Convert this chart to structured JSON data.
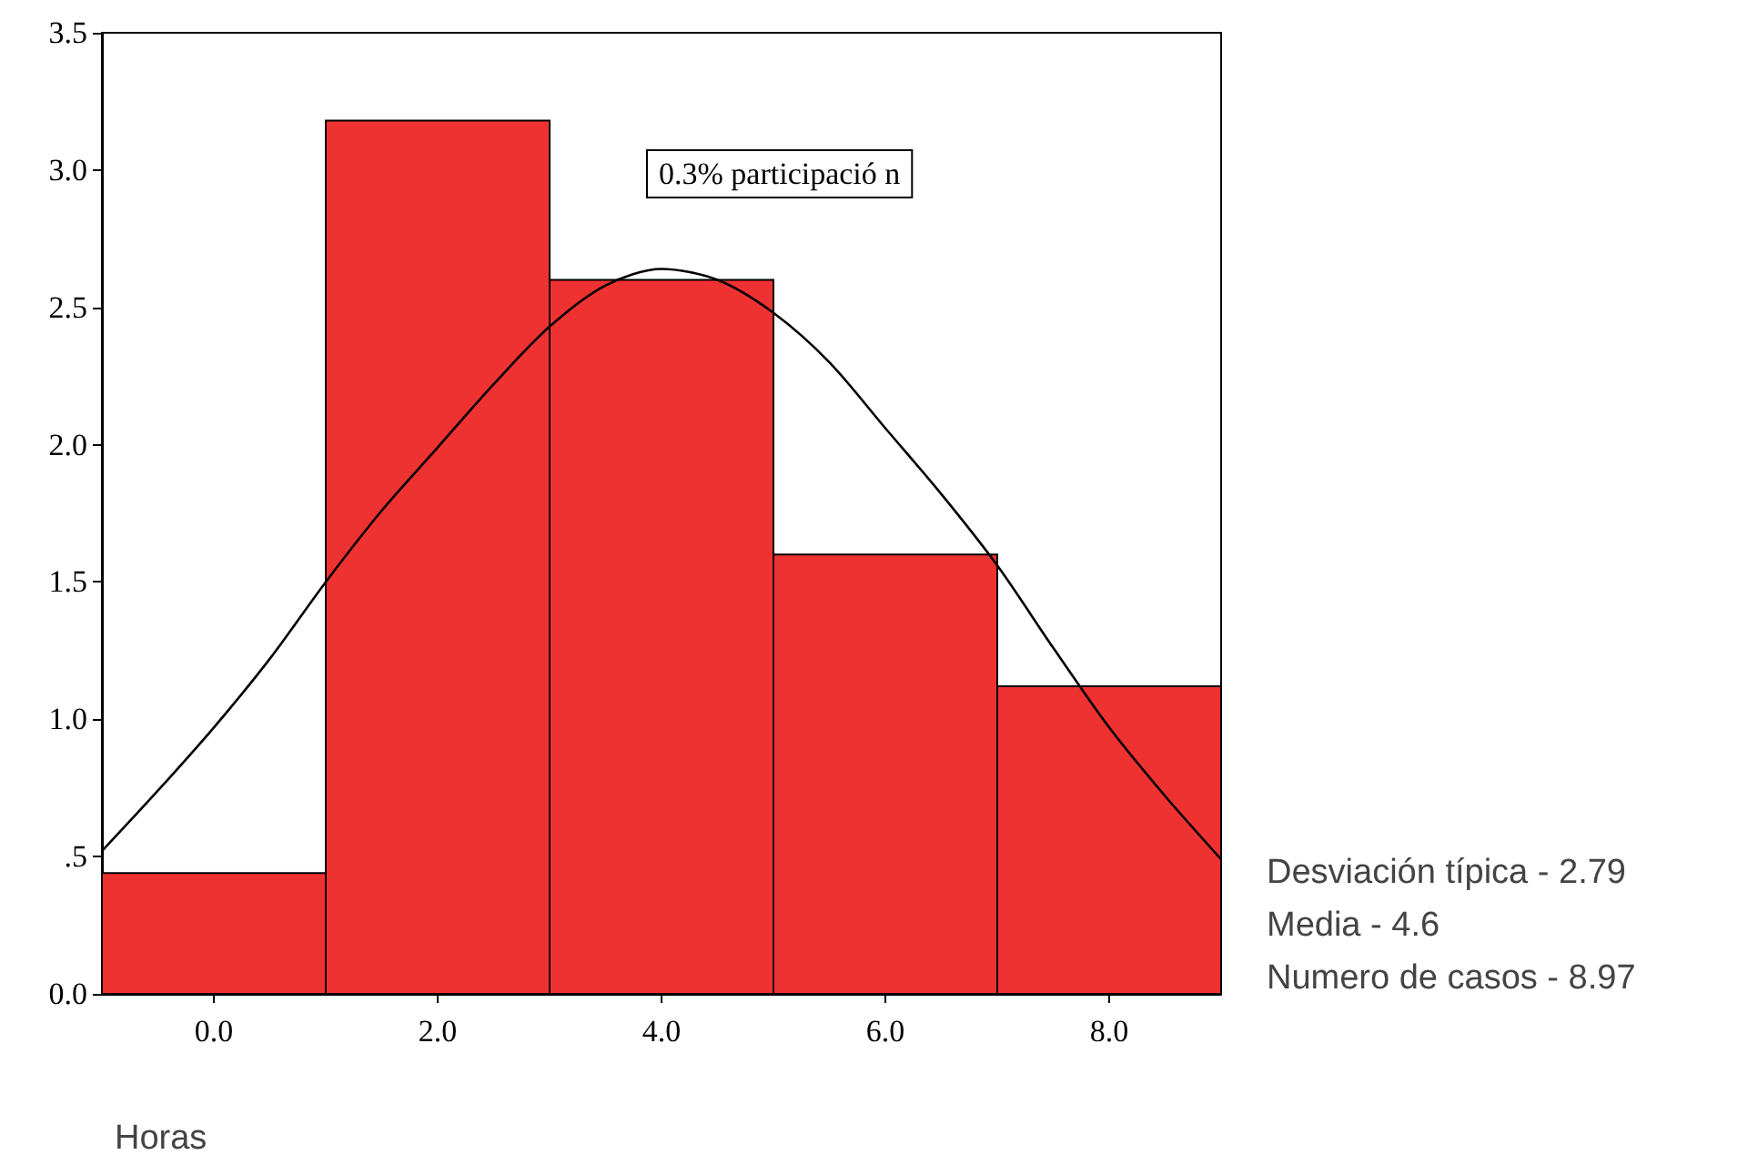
{
  "chart_data": {
    "type": "histogram",
    "xlabel": "Horas",
    "bins": [
      -1,
      1,
      3,
      5,
      7,
      9
    ],
    "xlim": [
      -1,
      9
    ],
    "ylim": [
      0,
      3.5
    ],
    "xticks": [
      {
        "value": 0,
        "label": "0.0"
      },
      {
        "value": 2,
        "label": "2.0"
      },
      {
        "value": 4,
        "label": "4.0"
      },
      {
        "value": 6,
        "label": "6.0"
      },
      {
        "value": 8,
        "label": "8.0"
      }
    ],
    "yticks": [
      {
        "value": 0,
        "label": "0.0"
      },
      {
        "value": 0.5,
        "label": ".5"
      },
      {
        "value": 1,
        "label": "1.0"
      },
      {
        "value": 1.5,
        "label": "1.5"
      },
      {
        "value": 2,
        "label": "2.0"
      },
      {
        "value": 2.5,
        "label": "2.5"
      },
      {
        "value": 3,
        "label": "3.0"
      },
      {
        "value": 3.5,
        "label": "3.5"
      }
    ],
    "grid": false,
    "marker": "none",
    "series": [
      {
        "color": "#ee3231",
        "values": [
          0.44,
          3.18,
          2.6,
          1.6,
          1.12
        ]
      },
      {
        "type": "line",
        "color": "#000000",
        "x": [
          -1,
          -0.5,
          0,
          0.5,
          1,
          1.5,
          2,
          2.5,
          3,
          3.5,
          4,
          4.5,
          5,
          5.5,
          6,
          6.5,
          7,
          7.5,
          8,
          8.5,
          9
        ],
        "values": [
          0.52,
          0.74,
          0.97,
          1.22,
          1.5,
          1.76,
          1.99,
          2.22,
          2.43,
          2.58,
          2.64,
          2.6,
          2.48,
          2.3,
          2.06,
          1.82,
          1.56,
          1.26,
          0.97,
          0.72,
          0.49
        ]
      }
    ],
    "annotations": [
      "0.3% participació n",
      "Desviación típica - 2.79",
      "Media - 4.6",
      "Numero de casos - 8.97"
    ]
  }
}
